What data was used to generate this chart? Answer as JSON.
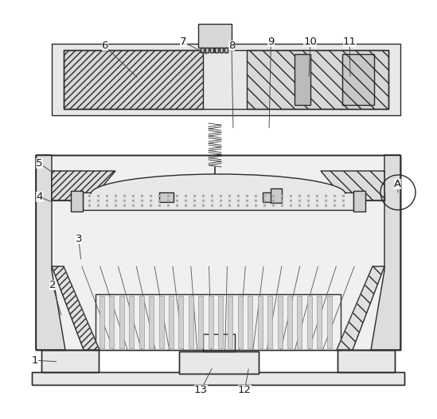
{
  "bg_color": "#ffffff",
  "lc": "#2a2a2a",
  "fc_light": "#f0f0f0",
  "fc_mid": "#e0e0e0",
  "fc_dark": "#c8c8c8",
  "figsize": [
    5.49,
    5.27
  ],
  "dpi": 100,
  "labels": {
    "1": [
      0.08,
      0.86,
      80,
      455
    ],
    "2": [
      0.12,
      0.68,
      78,
      380
    ],
    "3": [
      0.18,
      0.57,
      100,
      320
    ],
    "4": [
      0.09,
      0.47,
      65,
      260
    ],
    "5": [
      0.09,
      0.39,
      55,
      210
    ],
    "6": [
      0.24,
      0.11,
      175,
      80
    ],
    "7": [
      0.42,
      0.1,
      265,
      75
    ],
    "8": [
      0.53,
      0.11,
      295,
      80
    ],
    "9": [
      0.62,
      0.1,
      340,
      75
    ],
    "10": [
      0.71,
      0.1,
      390,
      75
    ],
    "11": [
      0.8,
      0.1,
      440,
      75
    ],
    "12": [
      0.56,
      0.93,
      315,
      490
    ],
    "13": [
      0.46,
      0.93,
      270,
      490
    ],
    "A": [
      0.91,
      0.44,
      500,
      240
    ]
  }
}
